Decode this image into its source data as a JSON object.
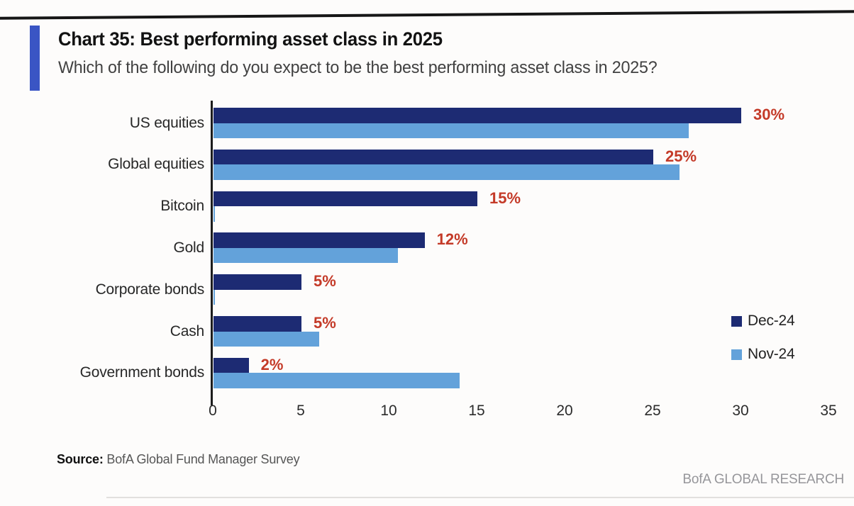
{
  "header": {
    "title": "Chart 35: Best performing asset class in 2025",
    "subtitle": "Which of the following do you expect to be the best performing asset class in 2025?"
  },
  "chart_data": {
    "type": "bar",
    "orientation": "horizontal",
    "title": "Chart 35: Best performing asset class in 2025",
    "categories": [
      "US equities",
      "Global equities",
      "Bitcoin",
      "Gold",
      "Corporate bonds",
      "Cash",
      "Government bonds"
    ],
    "series": [
      {
        "name": "Dec-24",
        "color": "#1d2b73",
        "values": [
          30,
          25,
          15,
          12,
          5,
          5,
          2
        ],
        "value_labels": [
          "30%",
          "25%",
          "15%",
          "12%",
          "5%",
          "5%",
          "2%"
        ]
      },
      {
        "name": "Nov-24",
        "color": "#63a2da",
        "values": [
          27,
          26.5,
          0,
          10.5,
          0,
          6,
          14
        ],
        "value_labels": [
          null,
          null,
          null,
          null,
          null,
          null,
          null
        ]
      }
    ],
    "x_ticks": [
      0,
      5,
      10,
      15,
      20,
      25,
      30,
      35
    ],
    "xlim": [
      0,
      35
    ],
    "xlabel": "",
    "ylabel": "",
    "grid": false,
    "legend_position": "middle-right",
    "value_label_color": "#c43a28"
  },
  "footer": {
    "source_label": "Source:",
    "source_text": " BofA Global Fund Manager Survey",
    "brand": "BofA GLOBAL RESEARCH"
  },
  "colors": {
    "accent_bar": "#3a55c4",
    "dec_series": "#1d2b73",
    "nov_series": "#63a2da",
    "value_label": "#c43a28",
    "axis": "#1c1c1c"
  }
}
